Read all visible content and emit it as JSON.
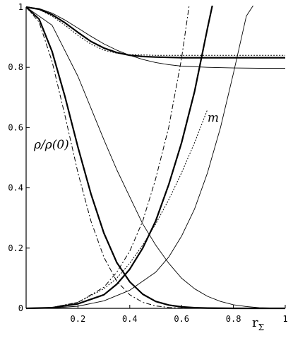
{
  "chart_data": {
    "type": "line",
    "xlabel": "r",
    "xlabel_subscript": "Σ",
    "ylabel": "",
    "xlim": [
      0,
      1
    ],
    "ylim": [
      0,
      1
    ],
    "x_ticks": [
      {
        "value": 0.2,
        "label": "0.2"
      },
      {
        "value": 0.4,
        "label": "0.4"
      },
      {
        "value": 0.6,
        "label": "0.6"
      },
      {
        "value": 0.8,
        "label": "0.8"
      },
      {
        "value": 1.0,
        "label": "1"
      }
    ],
    "y_ticks": [
      {
        "value": 0,
        "label": "0"
      },
      {
        "value": 0.2,
        "label": "0.2"
      },
      {
        "value": 0.4,
        "label": "0.4"
      },
      {
        "value": 0.6,
        "label": "0.6"
      },
      {
        "value": 0.8,
        "label": "0.8"
      },
      {
        "value": 1.0,
        "label": "1"
      }
    ],
    "annotations": [
      {
        "text": "m",
        "x": 0.7,
        "y": 0.62
      },
      {
        "text": "ρ/ρ(0)",
        "x": 0.03,
        "y": 0.53
      }
    ],
    "series": [
      {
        "style": "thick",
        "x": [
          0,
          0.05,
          0.1,
          0.15,
          0.2,
          0.25,
          0.3,
          0.35,
          0.4,
          0.45,
          0.5,
          0.55,
          0.6,
          0.65,
          0.7,
          0.8,
          0.9,
          1.0
        ],
        "values": [
          1,
          0.993,
          0.975,
          0.948,
          0.916,
          0.886,
          0.864,
          0.849,
          0.84,
          0.836,
          0.834,
          0.833,
          0.832,
          0.832,
          0.832,
          0.832,
          0.832,
          0.832
        ]
      },
      {
        "style": "thin",
        "x": [
          0,
          0.05,
          0.1,
          0.15,
          0.2,
          0.25,
          0.3,
          0.35,
          0.4,
          0.45,
          0.5,
          0.55,
          0.6,
          0.7,
          0.8,
          0.9,
          1.0
        ],
        "values": [
          1,
          0.995,
          0.98,
          0.957,
          0.93,
          0.903,
          0.878,
          0.857,
          0.84,
          0.826,
          0.816,
          0.809,
          0.804,
          0.8,
          0.798,
          0.797,
          0.797
        ]
      },
      {
        "style": "dotted",
        "x": [
          0,
          0.05,
          0.1,
          0.15,
          0.2,
          0.25,
          0.3,
          0.35,
          0.4,
          0.5,
          0.6,
          0.8,
          1.0
        ],
        "values": [
          1,
          0.992,
          0.97,
          0.94,
          0.906,
          0.877,
          0.857,
          0.847,
          0.842,
          0.84,
          0.84,
          0.84,
          0.84
        ]
      },
      {
        "style": "thick",
        "x": [
          0,
          0.05,
          0.1,
          0.15,
          0.2,
          0.25,
          0.3,
          0.35,
          0.4,
          0.45,
          0.5,
          0.55,
          0.6,
          0.65,
          0.7,
          0.8,
          0.9,
          1.0
        ],
        "values": [
          1,
          0.96,
          0.853,
          0.703,
          0.535,
          0.38,
          0.25,
          0.152,
          0.088,
          0.047,
          0.023,
          0.011,
          0.005,
          0.002,
          0.001,
          0,
          0,
          0
        ]
      },
      {
        "style": "dashdot",
        "x": [
          0,
          0.05,
          0.1,
          0.15,
          0.2,
          0.25,
          0.3,
          0.35,
          0.4,
          0.45,
          0.5,
          0.55,
          0.6,
          0.7,
          0.8,
          1.0
        ],
        "values": [
          1,
          0.95,
          0.82,
          0.64,
          0.45,
          0.29,
          0.17,
          0.09,
          0.045,
          0.02,
          0.008,
          0.003,
          0.001,
          0,
          0,
          0
        ]
      },
      {
        "style": "thin",
        "x": [
          0,
          0.1,
          0.2,
          0.3,
          0.35,
          0.4,
          0.45,
          0.5,
          0.55,
          0.6,
          0.65,
          0.7,
          0.75,
          0.8,
          0.85,
          0.9,
          0.95,
          1.0
        ],
        "values": [
          1,
          0.94,
          0.77,
          0.56,
          0.46,
          0.37,
          0.28,
          0.21,
          0.15,
          0.1,
          0.065,
          0.04,
          0.023,
          0.012,
          0.006,
          0.002,
          0.001,
          0
        ]
      },
      {
        "style": "thick",
        "x": [
          0,
          0.1,
          0.2,
          0.3,
          0.35,
          0.4,
          0.45,
          0.5,
          0.55,
          0.6,
          0.65,
          0.7,
          0.72
        ],
        "values": [
          0,
          0.002,
          0.015,
          0.045,
          0.08,
          0.13,
          0.2,
          0.29,
          0.41,
          0.55,
          0.72,
          0.93,
          1.01
        ]
      },
      {
        "style": "dashdot",
        "x": [
          0,
          0.1,
          0.2,
          0.3,
          0.35,
          0.4,
          0.45,
          0.5,
          0.55,
          0.6,
          0.63
        ],
        "values": [
          0,
          0.003,
          0.02,
          0.07,
          0.12,
          0.19,
          0.29,
          0.43,
          0.6,
          0.83,
          1.01
        ]
      },
      {
        "style": "thin",
        "x": [
          0,
          0.1,
          0.2,
          0.3,
          0.4,
          0.5,
          0.55,
          0.6,
          0.65,
          0.7,
          0.75,
          0.8,
          0.85,
          0.88
        ],
        "values": [
          0,
          0.001,
          0.007,
          0.025,
          0.06,
          0.12,
          0.17,
          0.24,
          0.33,
          0.45,
          0.6,
          0.78,
          0.97,
          1.01
        ]
      },
      {
        "style": "dotted",
        "x": [
          0,
          0.1,
          0.2,
          0.3,
          0.35,
          0.4,
          0.45,
          0.5,
          0.55,
          0.6,
          0.65,
          0.7
        ],
        "values": [
          0,
          0.003,
          0.02,
          0.065,
          0.1,
          0.15,
          0.21,
          0.28,
          0.36,
          0.45,
          0.55,
          0.66
        ]
      }
    ]
  }
}
